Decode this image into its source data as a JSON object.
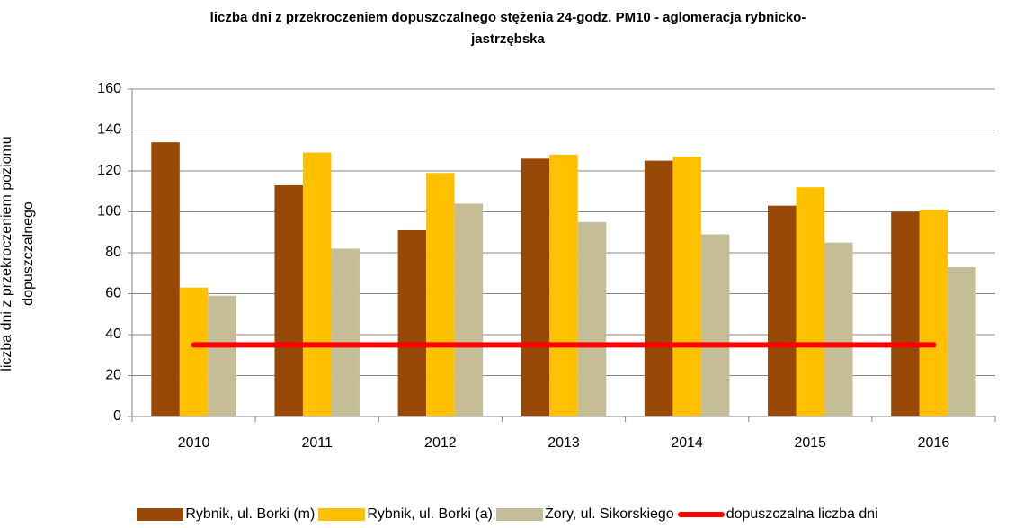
{
  "chart_data": {
    "type": "bar",
    "title": "liczba dni z przekroczeniem dopuszczalnego stężenia 24-godz. PM10  - aglomeracja rybnicko-jastrzębska",
    "ylabel": "liczba dni z przekroczeniem poziomu dopuszczalnego",
    "categories": [
      "2010",
      "2011",
      "2012",
      "2013",
      "2014",
      "2015",
      "2016"
    ],
    "series": [
      {
        "name": "Rybnik, ul. Borki (m)",
        "color": "#984807",
        "values": [
          134,
          113,
          91,
          126,
          125,
          103,
          100
        ]
      },
      {
        "name": "Rybnik, ul. Borki (a)",
        "color": "#ffc000",
        "values": [
          63,
          129,
          119,
          128,
          127,
          112,
          101
        ]
      },
      {
        "name": "Żory, ul. Sikorskiego",
        "color": "#c4bd97",
        "values": [
          59,
          82,
          104,
          95,
          89,
          85,
          73
        ]
      },
      {
        "name": "dopuszczalna liczba dni",
        "color": "#ff0000",
        "type": "line",
        "values": [
          35,
          35,
          35,
          35,
          35,
          35,
          35
        ]
      }
    ],
    "ylim": [
      0,
      160
    ],
    "yticks": [
      0,
      20,
      40,
      60,
      80,
      100,
      120,
      140,
      160
    ],
    "grid": true,
    "legend": "bottom"
  }
}
